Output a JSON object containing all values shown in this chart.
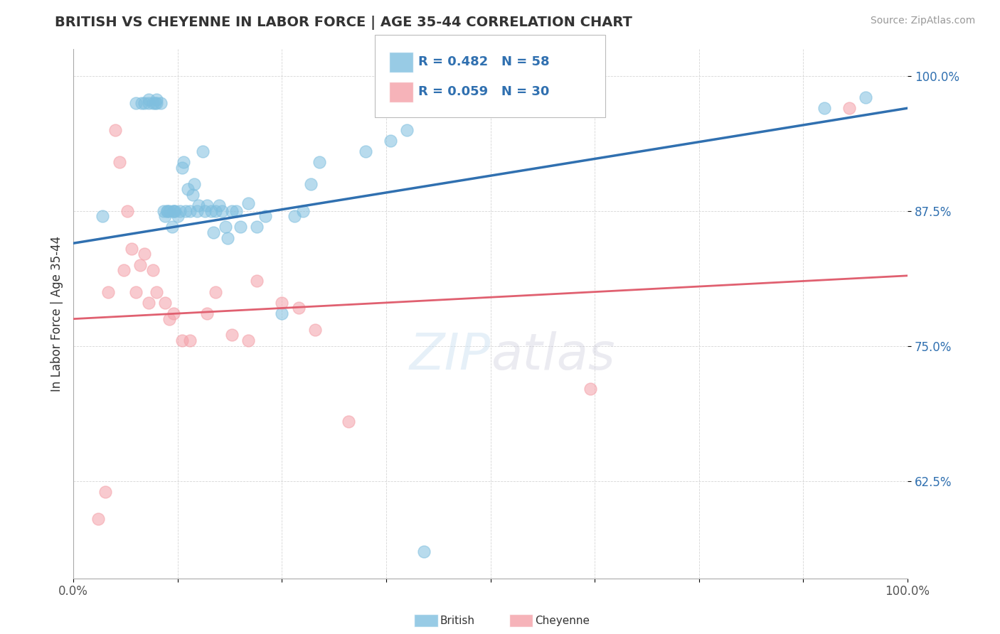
{
  "title": "BRITISH VS CHEYENNE IN LABOR FORCE | AGE 35-44 CORRELATION CHART",
  "source": "Source: ZipAtlas.com",
  "ylabel": "In Labor Force | Age 35-44",
  "xlim": [
    0,
    1
  ],
  "ylim": [
    0.535,
    1.025
  ],
  "ytick_positions": [
    0.625,
    0.75,
    0.875,
    1.0
  ],
  "ytick_labels": [
    "62.5%",
    "75.0%",
    "87.5%",
    "100.0%"
  ],
  "british_color": "#7fbfdf",
  "cheyenne_color": "#f4a0a8",
  "british_line_color": "#3070b0",
  "cheyenne_line_color": "#e06070",
  "legend_R_british": "0.482",
  "legend_N_british": "58",
  "legend_R_cheyenne": "0.059",
  "legend_N_cheyenne": "30",
  "british_x": [
    0.035,
    0.075,
    0.082,
    0.085,
    0.09,
    0.09,
    0.095,
    0.098,
    0.1,
    0.1,
    0.105,
    0.108,
    0.11,
    0.112,
    0.112,
    0.115,
    0.118,
    0.12,
    0.12,
    0.122,
    0.125,
    0.128,
    0.13,
    0.132,
    0.135,
    0.137,
    0.14,
    0.143,
    0.145,
    0.148,
    0.15,
    0.155,
    0.158,
    0.16,
    0.165,
    0.168,
    0.17,
    0.175,
    0.178,
    0.182,
    0.185,
    0.19,
    0.195,
    0.2,
    0.21,
    0.22,
    0.23,
    0.25,
    0.265,
    0.275,
    0.285,
    0.295,
    0.35,
    0.38,
    0.4,
    0.42,
    0.9,
    0.95
  ],
  "british_y": [
    0.87,
    0.975,
    0.975,
    0.975,
    0.978,
    0.975,
    0.975,
    0.975,
    0.975,
    0.978,
    0.975,
    0.875,
    0.87,
    0.875,
    0.875,
    0.875,
    0.86,
    0.875,
    0.875,
    0.875,
    0.87,
    0.875,
    0.915,
    0.92,
    0.875,
    0.895,
    0.875,
    0.89,
    0.9,
    0.875,
    0.88,
    0.93,
    0.875,
    0.88,
    0.875,
    0.855,
    0.875,
    0.88,
    0.875,
    0.86,
    0.85,
    0.875,
    0.875,
    0.86,
    0.882,
    0.86,
    0.87,
    0.78,
    0.87,
    0.875,
    0.9,
    0.92,
    0.93,
    0.94,
    0.95,
    0.56,
    0.97,
    0.98
  ],
  "cheyenne_x": [
    0.03,
    0.038,
    0.042,
    0.05,
    0.055,
    0.06,
    0.065,
    0.07,
    0.075,
    0.08,
    0.085,
    0.09,
    0.095,
    0.1,
    0.11,
    0.115,
    0.12,
    0.13,
    0.14,
    0.16,
    0.17,
    0.19,
    0.21,
    0.22,
    0.25,
    0.27,
    0.29,
    0.33,
    0.62,
    0.93
  ],
  "cheyenne_y": [
    0.59,
    0.615,
    0.8,
    0.95,
    0.92,
    0.82,
    0.875,
    0.84,
    0.8,
    0.825,
    0.835,
    0.79,
    0.82,
    0.8,
    0.79,
    0.775,
    0.78,
    0.755,
    0.755,
    0.78,
    0.8,
    0.76,
    0.755,
    0.81,
    0.79,
    0.785,
    0.765,
    0.68,
    0.71,
    0.97
  ]
}
